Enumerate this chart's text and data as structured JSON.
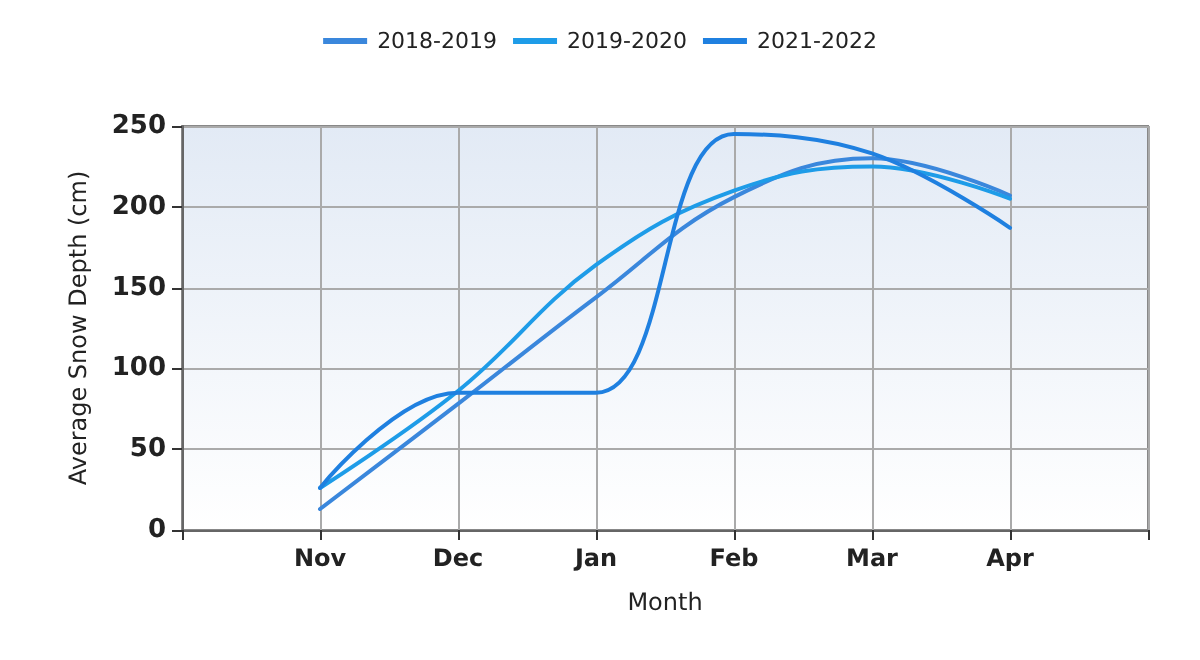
{
  "chart_data": {
    "type": "line",
    "xlabel": "Month",
    "ylabel": "Average Snow Depth (cm)",
    "categories": [
      null,
      "Nov",
      "Dec",
      "Jan",
      "Feb",
      "Mar",
      "Apr",
      null
    ],
    "series": [
      {
        "name": "2018-2019",
        "color": "#3a87dc",
        "values": [
          null,
          13,
          78,
          144,
          206,
          230,
          207,
          null
        ]
      },
      {
        "name": "2019-2020",
        "color": "#1e9ce8",
        "values": [
          null,
          26,
          86,
          164,
          210,
          225,
          205,
          null
        ]
      },
      {
        "name": "2021-2022",
        "color": "#1f80e0",
        "values": [
          null,
          26,
          85,
          85,
          245,
          233,
          187,
          null
        ]
      }
    ],
    "ylim": [
      0,
      250
    ],
    "yticks": [
      0,
      50,
      100,
      150,
      200,
      250
    ],
    "grid": true,
    "legend": "top",
    "marker": "none",
    "line_style": "solid"
  }
}
